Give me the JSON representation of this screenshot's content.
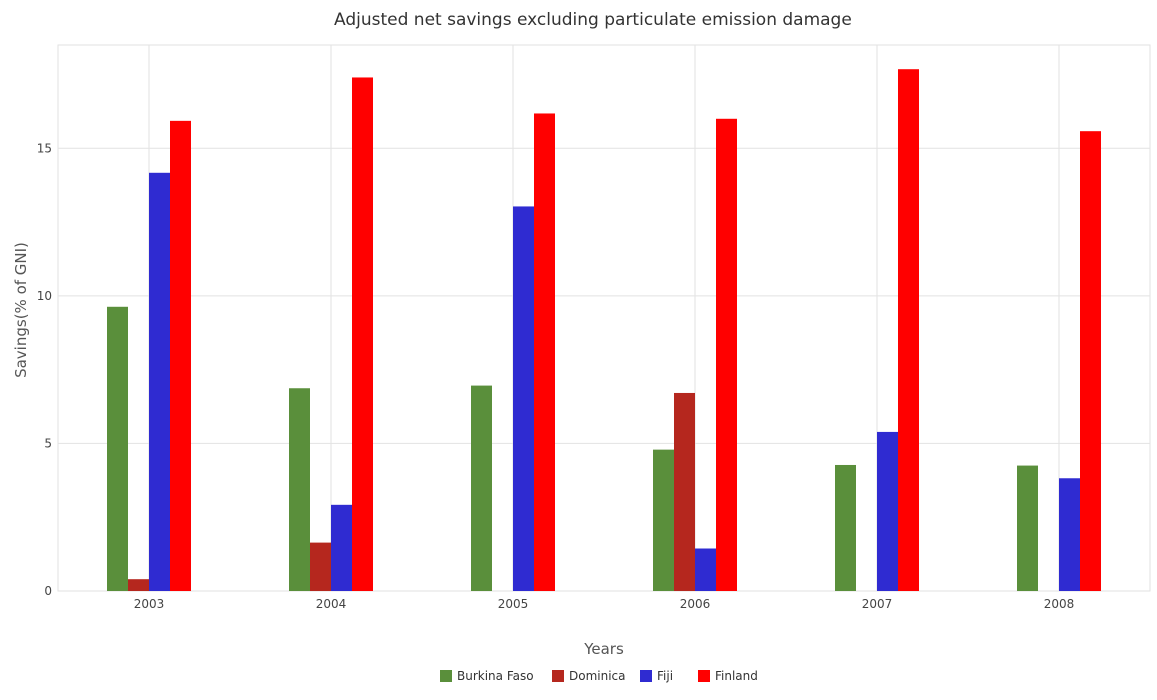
{
  "chart_data": {
    "type": "bar",
    "title": "Adjusted net savings excluding particulate emission damage",
    "xlabel": "Years",
    "ylabel": "Savings(% of GNI)",
    "categories": [
      "2003",
      "2004",
      "2005",
      "2006",
      "2007",
      "2008"
    ],
    "ylim": [
      0,
      18.5
    ],
    "yticks": [
      0,
      5,
      10,
      15
    ],
    "grid": true,
    "legend_position": "bottom",
    "series": [
      {
        "name": "Burkina Faso",
        "color": "#5a8f3b",
        "values": [
          9.63,
          6.87,
          6.96,
          4.79,
          4.27,
          4.25
        ]
      },
      {
        "name": "Dominica",
        "color": "#b5271e",
        "values": [
          0.4,
          1.64,
          0,
          6.71,
          0,
          0
        ]
      },
      {
        "name": "Fiji",
        "color": "#2f2bd1",
        "values": [
          14.17,
          2.92,
          13.03,
          1.44,
          5.39,
          3.82
        ]
      },
      {
        "name": "Finland",
        "color": "#ff0000",
        "values": [
          15.93,
          17.4,
          16.18,
          16.0,
          17.68,
          15.58
        ]
      }
    ]
  }
}
